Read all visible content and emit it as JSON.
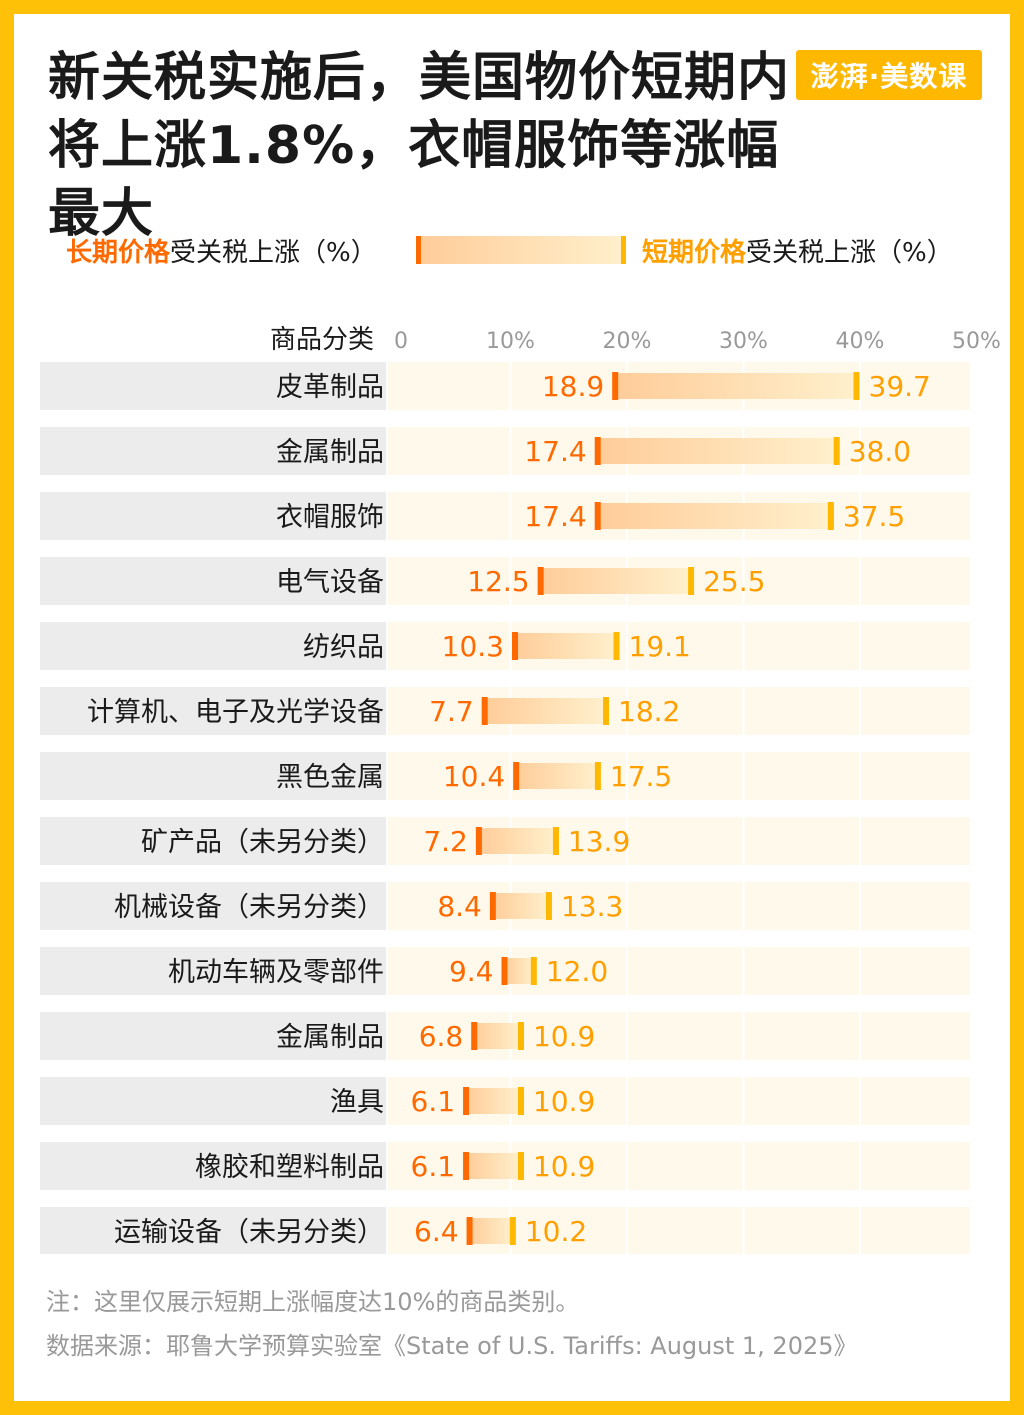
{
  "title": "新关税实施后，美国物价短期内将上涨1.8%，衣帽服饰等涨幅最大",
  "logo_text": "澎湃·美数课",
  "legend": {
    "long_em": "长期价格",
    "long_rest": "受关税上涨（%）",
    "short_em": "短期价格",
    "short_rest": "受关税上涨（%）"
  },
  "colors": {
    "long_marker": "#FF6A00",
    "short_marker": "#FFB800",
    "long_label": "#FF6A00",
    "short_label": "#FFA000",
    "bar_start": "#FFCC99",
    "bar_end": "#FFF0CC",
    "row_label_bg": "#ECECEC",
    "row_plot_bg": "#FFF9EC"
  },
  "chart_data": {
    "type": "bar",
    "category_header": "商品分类",
    "x_ticks": [
      "0",
      "10%",
      "20%",
      "30%",
      "40%",
      "50%"
    ],
    "xlim": [
      0,
      50
    ],
    "categories": [
      "皮革制品",
      "金属制品",
      "衣帽服饰",
      "电气设备",
      "纺织品",
      "计算机、电子及光学设备",
      "黑色金属",
      "矿产品（未另分类）",
      "机械设备（未另分类）",
      "机动车辆及零部件",
      "金属制品",
      "渔具",
      "橡胶和塑料制品",
      "运输设备（未另分类）"
    ],
    "series": [
      {
        "name": "长期价格受关税上涨（%）",
        "values": [
          18.9,
          17.4,
          17.4,
          12.5,
          10.3,
          7.7,
          10.4,
          7.2,
          8.4,
          9.4,
          6.8,
          6.1,
          6.1,
          6.4
        ]
      },
      {
        "name": "短期价格受关税上涨（%）",
        "values": [
          39.7,
          38.0,
          37.5,
          25.5,
          19.1,
          18.2,
          17.5,
          13.9,
          13.3,
          12.0,
          10.9,
          10.9,
          10.9,
          10.2
        ]
      }
    ],
    "long_labels": [
      "18.9",
      "17.4",
      "17.4",
      "12.5",
      "10.3",
      "7.7",
      "10.4",
      "7.2",
      "8.4",
      "9.4",
      "6.8",
      "6.1",
      "6.1",
      "6.4"
    ],
    "short_labels": [
      "39.7",
      "38.0",
      "37.5",
      "25.5",
      "19.1",
      "18.2",
      "17.5",
      "13.9",
      "13.3",
      "12.0",
      "10.9",
      "10.9",
      "10.9",
      "10.2"
    ]
  },
  "note": "注：这里仅展示短期上涨幅度达10%的商品类别。",
  "source": "数据来源：耶鲁大学预算实验室《State of U.S. Tariffs: August 1, 2025》"
}
